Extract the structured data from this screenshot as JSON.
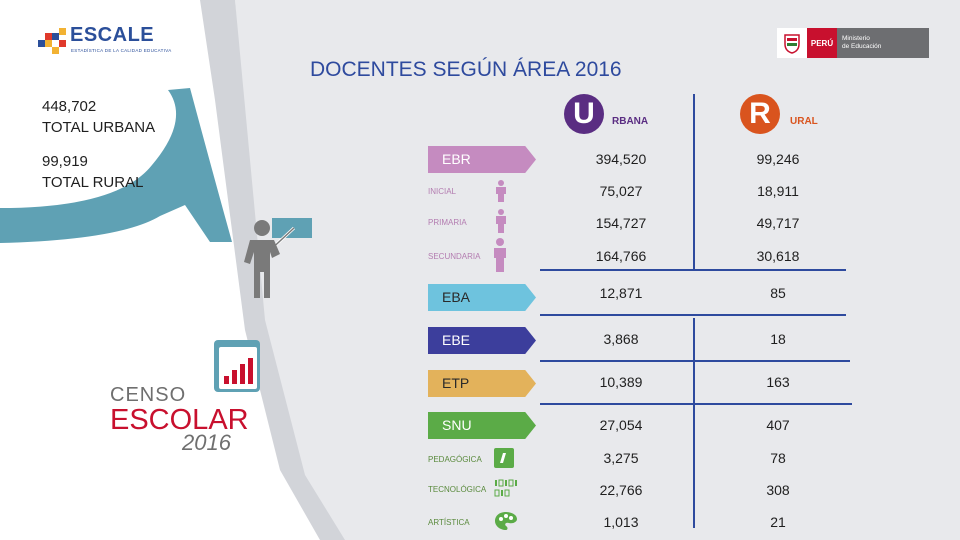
{
  "header": {
    "escale_logo": {
      "word": "ESCALE",
      "tagline": "ESTADÍSTICA DE LA CALIDAD EDUCATIVA"
    },
    "ministry_logo": {
      "country": "PERÚ",
      "ministry_line1": "Ministerio",
      "ministry_line2": "de Educación"
    },
    "title": "DOCENTES SEGÚN ÁREA 2016"
  },
  "totals": {
    "urbana_value": "448,702",
    "urbana_label": "TOTAL URBANA",
    "rural_value": "99,919",
    "rural_label": "TOTAL RURAL"
  },
  "censo_logo": {
    "line1": "CENSO",
    "line2": "ESCOLAR",
    "line3": "2016"
  },
  "columns": {
    "urbana": {
      "letter": "U",
      "rest": "RBANA",
      "color": "#5a2d82"
    },
    "rural": {
      "letter": "R",
      "rest": "URAL",
      "color": "#d9541e"
    }
  },
  "rows": {
    "ebr": {
      "label": "EBR",
      "urbana": "394,520",
      "rural": "99,246",
      "color": "#c58bc0"
    },
    "inicial": {
      "label": "INICIAL",
      "urbana": "75,027",
      "rural": "18,911",
      "icon": "person-icon"
    },
    "primaria": {
      "label": "PRIMARIA",
      "urbana": "154,727",
      "rural": "49,717",
      "icon": "person-icon"
    },
    "secundaria": {
      "label": "SECUNDARIA",
      "urbana": "164,766",
      "rural": "30,618",
      "icon": "person-icon"
    },
    "eba": {
      "label": "EBA",
      "urbana": "12,871",
      "rural": "85",
      "color": "#6ec3de"
    },
    "ebe": {
      "label": "EBE",
      "urbana": "3,868",
      "rural": "18",
      "color": "#3c3e9c"
    },
    "etp": {
      "label": "ETP",
      "urbana": "10,389",
      "rural": "163",
      "color": "#e3b25b"
    },
    "snu": {
      "label": "SNU",
      "urbana": "27,054",
      "rural": "407",
      "color": "#5bab47"
    },
    "pedagogica": {
      "label": "PEDAGÓGICA",
      "urbana": "3,275",
      "rural": "78",
      "icon": "pencil-icon"
    },
    "tecnologica": {
      "label": "TECNOLÓGICA",
      "urbana": "22,766",
      "rural": "308",
      "icon": "binary-icon"
    },
    "artistica": {
      "label": "ARTÍSTICA",
      "urbana": "1,013",
      "rural": "21",
      "icon": "palette-icon"
    }
  }
}
